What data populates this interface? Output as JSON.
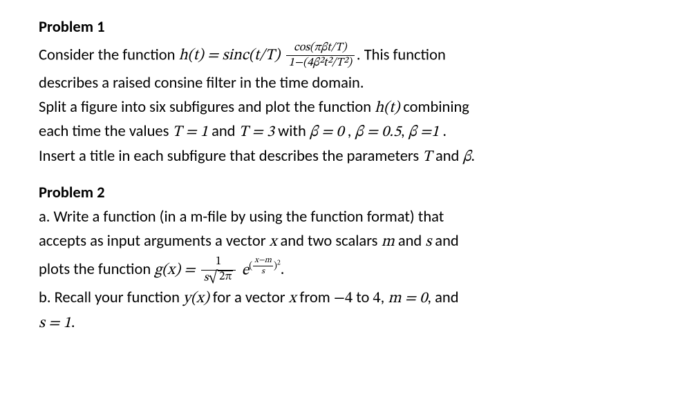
{
  "typography": {
    "body_font": "Calibri",
    "math_font": "Cambria Math",
    "body_size_pt": 17,
    "small_math_size_pt": 12,
    "heading_weight": 700,
    "text_color": "#000000",
    "background_color": "#ffffff",
    "line_height": 1.45
  },
  "problem1": {
    "heading": "Problem 1",
    "line1_a": "Consider the function ",
    "line1_b": ". This function",
    "eq1_lhs": "h(t) = sinc(t/T)",
    "eq1_frac_num": "cos(πβt/T)",
    "eq1_frac_den": "1−(4β²t²/T²)",
    "line2": "describes a raised consine filter in the time domain.",
    "line3_a": "Split a figure into six subfigures and plot the function ",
    "line3_ht": "h(t)",
    "line3_b": " combining",
    "line4_a": "each time the values ",
    "line4_T1": "T = 1",
    "line4_and": " and ",
    "line4_T3": "T = 3",
    "line4_with": " with ",
    "line4_b0": "β = 0",
    "line4_c1": " , ",
    "line4_b05": "β = 0.5",
    "line4_c2": ", ",
    "line4_b1": "β =1",
    "line4_end": " .",
    "line5_a": "Insert a title in each subfigure that describes the parameters ",
    "line5_T": "T",
    "line5_and": " and ",
    "line5_B": "β",
    "line5_end": "."
  },
  "problem2": {
    "heading": "Problem 2",
    "a1": "a. Write a function (in a m-file by using the function format) that",
    "a2_a": "accepts as input arguments a vector ",
    "a2_x": "x",
    "a2_b": " and two scalars ",
    "a2_m": "m",
    "a2_c": " and ",
    "a2_s": "s",
    "a2_d": " and",
    "a3_a": "plots the function ",
    "a3_gx": "g(x) = ",
    "a3_frac_num": "1",
    "a3_frac_den_s": "s",
    "a3_frac_den_sqrt": "2π",
    "a3_e": "e",
    "a3_exp_num": "x−m",
    "a3_exp_den": "s",
    "a3_exp_pow": "2",
    "a3_end": ".",
    "b_a": "b. Recall your function ",
    "b_yx": "y(x)",
    "b_b": " for a vector ",
    "b_x": "x",
    "b_c": " from ",
    "b_m4": "−4",
    "b_d": " to ",
    "b_4": "4",
    "b_e": ", ",
    "b_m0": "m = 0",
    "b_f": ", and",
    "b2_a": "s = 1",
    "b2_end": "."
  }
}
